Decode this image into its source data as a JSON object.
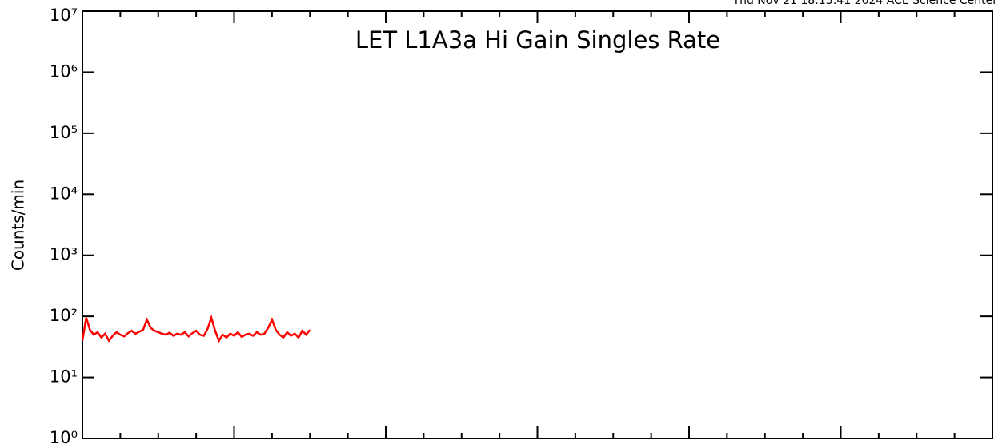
{
  "chart_data": {
    "type": "line",
    "title": "LET L1A3a Hi Gain Singles Rate",
    "annotation": "Thu Nov 21 18:13:41 2024 ACE Science Center",
    "y_label": "Counts/min",
    "log_y": true,
    "xlim": [
      0,
      6
    ],
    "xticks": [
      0,
      1,
      2,
      3,
      4,
      5,
      6
    ],
    "ylim": [
      1,
      10000000
    ],
    "yticks": [
      {
        "value": 1,
        "label": "10⁰"
      },
      {
        "value": 10,
        "label": "10¹"
      },
      {
        "value": 100,
        "label": "10²"
      },
      {
        "value": 1000,
        "label": "10³"
      },
      {
        "value": 10000,
        "label": "10⁴"
      },
      {
        "value": 100000,
        "label": "10⁵"
      },
      {
        "value": 1000000,
        "label": "10⁶"
      },
      {
        "value": 10000000,
        "label": "10⁷"
      }
    ],
    "title_color": "#0000ff",
    "series": [
      {
        "color": "#ff0000",
        "x": [
          0,
          0.025,
          0.05,
          0.075,
          0.1,
          0.125,
          0.15,
          0.175,
          0.2,
          0.225,
          0.25,
          0.275,
          0.3,
          0.325,
          0.35,
          0.375,
          0.4,
          0.425,
          0.45,
          0.475,
          0.5,
          0.525,
          0.55,
          0.575,
          0.6,
          0.625,
          0.65,
          0.675,
          0.7,
          0.725,
          0.75,
          0.775,
          0.8,
          0.825,
          0.85,
          0.875,
          0.9,
          0.925,
          0.95,
          0.975,
          1,
          1.025,
          1.05,
          1.075,
          1.1,
          1.125,
          1.15,
          1.175,
          1.2,
          1.225,
          1.25,
          1.275,
          1.3,
          1.325,
          1.35,
          1.375,
          1.4,
          1.425,
          1.45,
          1.475,
          1.5
        ],
        "values": [
          40,
          95,
          60,
          50,
          55,
          45,
          52,
          40,
          48,
          55,
          50,
          47,
          53,
          58,
          52,
          56,
          60,
          88,
          65,
          58,
          55,
          52,
          50,
          54,
          48,
          52,
          50,
          55,
          47,
          53,
          58,
          50,
          48,
          62,
          95,
          58,
          40,
          50,
          45,
          52,
          48,
          55,
          46,
          50,
          52,
          48,
          55,
          50,
          52,
          65,
          88,
          60,
          50,
          45,
          55,
          48,
          52,
          45,
          58,
          50,
          60
        ]
      }
    ]
  }
}
